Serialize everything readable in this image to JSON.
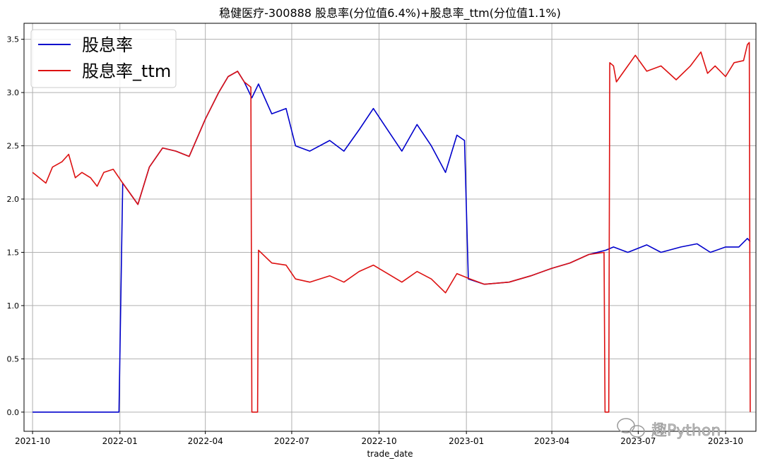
{
  "chart_data": {
    "type": "line",
    "title": "稳健医疗-300888 股息率(分位值6.4%)+股息率_ttm(分位值1.1%)",
    "xlabel": "trade_date",
    "ylabel": "",
    "xlim": [
      "2021-09-22",
      "2023-11-02"
    ],
    "ylim": [
      -0.18,
      3.65
    ],
    "x_ticks": [
      "2021-10",
      "2022-01",
      "2022-04",
      "2022-07",
      "2022-10",
      "2023-01",
      "2023-04",
      "2023-07",
      "2023-10"
    ],
    "y_ticks": [
      "0.0",
      "0.5",
      "1.0",
      "1.5",
      "2.0",
      "2.5",
      "3.0",
      "3.5"
    ],
    "grid": true,
    "legend": "top-left",
    "watermark": "趣Python",
    "colors": {
      "dividend_yield": "#0000cc",
      "dividend_yield_ttm": "#dd1111",
      "grid": "#b0b0b0"
    },
    "series": [
      {
        "name": "股息率",
        "color": "#0000cc",
        "points": [
          [
            "2021-10-01",
            0.0
          ],
          [
            "2021-12-31",
            0.0
          ],
          [
            "2022-01-04",
            2.15
          ],
          [
            "2022-01-12",
            2.05
          ],
          [
            "2022-01-20",
            1.95
          ],
          [
            "2022-02-01",
            2.3
          ],
          [
            "2022-02-15",
            2.48
          ],
          [
            "2022-03-01",
            2.45
          ],
          [
            "2022-03-15",
            2.4
          ],
          [
            "2022-04-01",
            2.75
          ],
          [
            "2022-04-15",
            3.0
          ],
          [
            "2022-04-25",
            3.15
          ],
          [
            "2022-05-05",
            3.2
          ],
          [
            "2022-05-12",
            3.1
          ],
          [
            "2022-05-20",
            2.95
          ],
          [
            "2022-05-27",
            3.08
          ],
          [
            "2022-06-10",
            2.8
          ],
          [
            "2022-06-25",
            2.85
          ],
          [
            "2022-07-05",
            2.5
          ],
          [
            "2022-07-20",
            2.45
          ],
          [
            "2022-08-10",
            2.55
          ],
          [
            "2022-08-25",
            2.45
          ],
          [
            "2022-09-10",
            2.65
          ],
          [
            "2022-09-25",
            2.85
          ],
          [
            "2022-10-10",
            2.65
          ],
          [
            "2022-10-25",
            2.45
          ],
          [
            "2022-11-10",
            2.7
          ],
          [
            "2022-11-25",
            2.5
          ],
          [
            "2022-12-10",
            2.25
          ],
          [
            "2022-12-22",
            2.6
          ],
          [
            "2022-12-30",
            2.55
          ],
          [
            "2023-01-03",
            1.25
          ],
          [
            "2023-01-20",
            1.2
          ],
          [
            "2023-02-15",
            1.22
          ],
          [
            "2023-03-10",
            1.28
          ],
          [
            "2023-04-01",
            1.35
          ],
          [
            "2023-04-20",
            1.4
          ],
          [
            "2023-05-10",
            1.48
          ],
          [
            "2023-05-28",
            1.52
          ],
          [
            "2023-06-05",
            1.55
          ],
          [
            "2023-06-20",
            1.5
          ],
          [
            "2023-07-10",
            1.57
          ],
          [
            "2023-07-25",
            1.5
          ],
          [
            "2023-08-15",
            1.55
          ],
          [
            "2023-09-01",
            1.58
          ],
          [
            "2023-09-15",
            1.5
          ],
          [
            "2023-10-01",
            1.55
          ],
          [
            "2023-10-15",
            1.55
          ],
          [
            "2023-10-24",
            1.63
          ],
          [
            "2023-10-27",
            1.6
          ]
        ]
      },
      {
        "name": "股息率_ttm",
        "color": "#dd1111",
        "points": [
          [
            "2021-10-01",
            2.25
          ],
          [
            "2021-10-08",
            2.2
          ],
          [
            "2021-10-15",
            2.15
          ],
          [
            "2021-10-22",
            2.3
          ],
          [
            "2021-11-01",
            2.35
          ],
          [
            "2021-11-08",
            2.42
          ],
          [
            "2021-11-15",
            2.2
          ],
          [
            "2021-11-22",
            2.25
          ],
          [
            "2021-12-01",
            2.2
          ],
          [
            "2021-12-08",
            2.12
          ],
          [
            "2021-12-15",
            2.25
          ],
          [
            "2021-12-25",
            2.28
          ],
          [
            "2022-01-04",
            2.15
          ],
          [
            "2022-01-12",
            2.05
          ],
          [
            "2022-01-20",
            1.95
          ],
          [
            "2022-02-01",
            2.3
          ],
          [
            "2022-02-15",
            2.48
          ],
          [
            "2022-03-01",
            2.45
          ],
          [
            "2022-03-15",
            2.4
          ],
          [
            "2022-04-01",
            2.75
          ],
          [
            "2022-04-15",
            3.0
          ],
          [
            "2022-04-25",
            3.15
          ],
          [
            "2022-05-05",
            3.2
          ],
          [
            "2022-05-12",
            3.1
          ],
          [
            "2022-05-19",
            3.05
          ],
          [
            "2022-05-20",
            0.0
          ],
          [
            "2022-05-26",
            0.0
          ],
          [
            "2022-05-27",
            1.52
          ],
          [
            "2022-06-10",
            1.4
          ],
          [
            "2022-06-25",
            1.38
          ],
          [
            "2022-07-05",
            1.25
          ],
          [
            "2022-07-20",
            1.22
          ],
          [
            "2022-08-10",
            1.28
          ],
          [
            "2022-08-25",
            1.22
          ],
          [
            "2022-09-10",
            1.32
          ],
          [
            "2022-09-25",
            1.38
          ],
          [
            "2022-10-10",
            1.3
          ],
          [
            "2022-10-25",
            1.22
          ],
          [
            "2022-11-10",
            1.32
          ],
          [
            "2022-11-25",
            1.25
          ],
          [
            "2022-12-10",
            1.12
          ],
          [
            "2022-12-22",
            1.3
          ],
          [
            "2023-01-05",
            1.25
          ],
          [
            "2023-01-20",
            1.2
          ],
          [
            "2023-02-15",
            1.22
          ],
          [
            "2023-03-10",
            1.28
          ],
          [
            "2023-04-01",
            1.35
          ],
          [
            "2023-04-20",
            1.4
          ],
          [
            "2023-05-10",
            1.48
          ],
          [
            "2023-05-26",
            1.5
          ],
          [
            "2023-05-27",
            0.0
          ],
          [
            "2023-05-31",
            0.0
          ],
          [
            "2023-06-01",
            3.28
          ],
          [
            "2023-06-05",
            3.25
          ],
          [
            "2023-06-08",
            3.1
          ],
          [
            "2023-06-20",
            3.25
          ],
          [
            "2023-06-28",
            3.35
          ],
          [
            "2023-07-10",
            3.2
          ],
          [
            "2023-07-25",
            3.25
          ],
          [
            "2023-08-10",
            3.12
          ],
          [
            "2023-08-25",
            3.25
          ],
          [
            "2023-09-05",
            3.38
          ],
          [
            "2023-09-12",
            3.18
          ],
          [
            "2023-09-20",
            3.25
          ],
          [
            "2023-10-01",
            3.15
          ],
          [
            "2023-10-10",
            3.28
          ],
          [
            "2023-10-20",
            3.3
          ],
          [
            "2023-10-24",
            3.45
          ],
          [
            "2023-10-26",
            3.47
          ],
          [
            "2023-10-27",
            0.0
          ]
        ]
      }
    ]
  }
}
